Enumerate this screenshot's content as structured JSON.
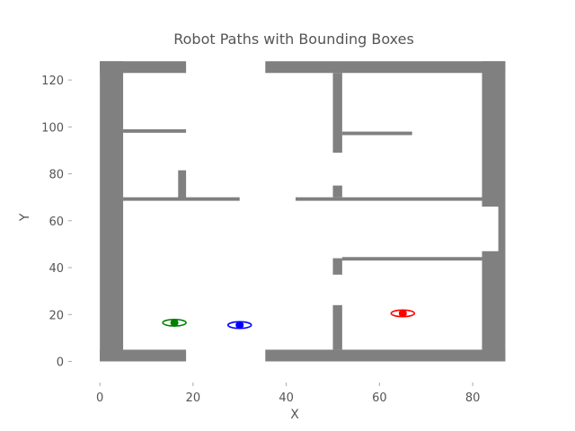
{
  "chart_data": {
    "type": "scatter",
    "title": "Robot Paths with Bounding Boxes",
    "xlabel": "X",
    "ylabel": "Y",
    "xlim": [
      -6,
      90
    ],
    "ylim": [
      -9,
      130
    ],
    "xticks": [
      0,
      20,
      40,
      60,
      80
    ],
    "yticks": [
      0,
      20,
      40,
      60,
      80,
      100,
      120
    ],
    "grid": false,
    "legend": "none",
    "map": {
      "wall_color": "#808080",
      "walls": [
        {
          "x": [
            0,
            5
          ],
          "y": [
            0,
            128
          ]
        },
        {
          "x": [
            82,
            87
          ],
          "y": [
            0,
            128
          ]
        },
        {
          "x": [
            0,
            18.5
          ],
          "y": [
            123,
            128
          ]
        },
        {
          "x": [
            35.5,
            87
          ],
          "y": [
            123,
            128
          ]
        },
        {
          "x": [
            0,
            18.5
          ],
          "y": [
            0,
            5
          ]
        },
        {
          "x": [
            35.5,
            87
          ],
          "y": [
            0,
            5
          ]
        },
        {
          "x": [
            5,
            18.5
          ],
          "y": [
            97.5,
            99
          ]
        },
        {
          "x": [
            16.8,
            18.5
          ],
          "y": [
            69,
            81.5
          ]
        },
        {
          "x": [
            5,
            30
          ],
          "y": [
            68.5,
            70
          ]
        },
        {
          "x": [
            42,
            82
          ],
          "y": [
            68.5,
            70
          ]
        },
        {
          "x": [
            50,
            52
          ],
          "y": [
            89,
            123
          ]
        },
        {
          "x": [
            50,
            52
          ],
          "y": [
            70,
            75
          ]
        },
        {
          "x": [
            52,
            67
          ],
          "y": [
            96.5,
            98
          ]
        },
        {
          "x": [
            50,
            52
          ],
          "y": [
            37,
            44
          ]
        },
        {
          "x": [
            52,
            82
          ],
          "y": [
            43,
            44.5
          ]
        },
        {
          "x": [
            50,
            52
          ],
          "y": [
            5,
            24
          ]
        }
      ],
      "gap_white": {
        "x": [
          82,
          85.5
        ],
        "y": [
          47,
          66
        ]
      }
    },
    "series": [
      {
        "color": "#008000",
        "x": [
          16
        ],
        "y": [
          16.5
        ],
        "box": {
          "w": 4,
          "h": 4
        }
      },
      {
        "color": "#0000ff",
        "x": [
          30
        ],
        "y": [
          15.5
        ],
        "box": {
          "w": 4,
          "h": 4
        }
      },
      {
        "color": "#ff0000",
        "x": [
          65
        ],
        "y": [
          20.5
        ],
        "box": {
          "w": 4,
          "h": 4
        }
      }
    ]
  }
}
